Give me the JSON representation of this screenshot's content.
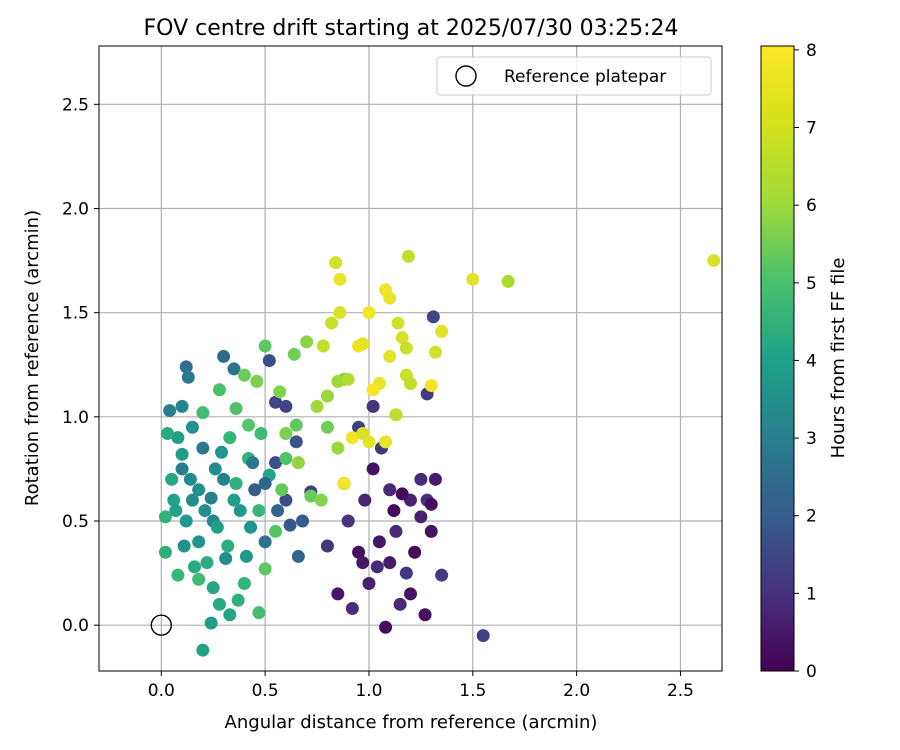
{
  "chart_data": {
    "type": "scatter",
    "title": "FOV centre drift starting at 2025/07/30 03:25:24",
    "xlabel": "Angular distance from reference (arcmin)",
    "ylabel": "Rotation from reference (arcmin)",
    "xlim": [
      -0.3,
      2.7
    ],
    "ylim": [
      -0.22,
      2.78
    ],
    "xticks": [
      "0.0",
      "0.5",
      "1.0",
      "1.5",
      "2.0",
      "2.5"
    ],
    "yticks": [
      "0.0",
      "0.5",
      "1.0",
      "1.5",
      "2.0",
      "2.5"
    ],
    "grid": true,
    "legend": {
      "position": "top-right",
      "entries": [
        "Reference platepar"
      ]
    },
    "reference_point": {
      "x": 0.0,
      "y": 0.0,
      "label": "Reference platepar"
    },
    "colorbar": {
      "label": "Hours from first FF file",
      "range": [
        0,
        8.05
      ],
      "ticks": [
        "0",
        "1",
        "2",
        "3",
        "4",
        "5",
        "6",
        "7",
        "8"
      ],
      "colormap": "viridis"
    },
    "series": [
      {
        "points": [
          {
            "x": 1.12,
            "y": 0.55,
            "h": 0.2
          },
          {
            "x": 1.05,
            "y": 0.4,
            "h": 0.5
          },
          {
            "x": 1.2,
            "y": 0.6,
            "h": 0.8
          },
          {
            "x": 0.95,
            "y": 0.35,
            "h": 0.3
          },
          {
            "x": 1.25,
            "y": 0.7,
            "h": 1.0
          },
          {
            "x": 1.1,
            "y": 0.3,
            "h": 0.6
          },
          {
            "x": 0.9,
            "y": 0.5,
            "h": 1.2
          },
          {
            "x": 1.3,
            "y": 0.45,
            "h": 0.4
          },
          {
            "x": 1.0,
            "y": 0.2,
            "h": 0.7
          },
          {
            "x": 1.15,
            "y": 0.1,
            "h": 0.9
          },
          {
            "x": 1.28,
            "y": 0.6,
            "h": 1.1
          },
          {
            "x": 0.85,
            "y": 0.15,
            "h": 0.5
          },
          {
            "x": 1.08,
            "y": -0.01,
            "h": 0.3
          },
          {
            "x": 1.18,
            "y": 0.25,
            "h": 1.3
          },
          {
            "x": 0.98,
            "y": 0.6,
            "h": 0.8
          },
          {
            "x": 1.22,
            "y": 0.35,
            "h": 0.2
          },
          {
            "x": 1.32,
            "y": 0.7,
            "h": 0.6
          },
          {
            "x": 0.92,
            "y": 0.08,
            "h": 1.0
          },
          {
            "x": 1.02,
            "y": 0.75,
            "h": 0.4
          },
          {
            "x": 1.13,
            "y": 0.45,
            "h": 0.9
          },
          {
            "x": 1.27,
            "y": 0.05,
            "h": 0.3
          },
          {
            "x": 1.35,
            "y": 0.24,
            "h": 1.4
          },
          {
            "x": 1.55,
            "y": -0.05,
            "h": 1.5
          },
          {
            "x": 0.8,
            "y": 0.38,
            "h": 1.2
          },
          {
            "x": 0.88,
            "y": 0.68,
            "h": 1.1
          },
          {
            "x": 1.06,
            "y": 0.85,
            "h": 1.3
          },
          {
            "x": 1.2,
            "y": 0.15,
            "h": 0.4
          },
          {
            "x": 1.25,
            "y": 0.52,
            "h": 0.7
          },
          {
            "x": 0.95,
            "y": 0.95,
            "h": 1.5
          },
          {
            "x": 1.31,
            "y": 1.48,
            "h": 1.6
          },
          {
            "x": 1.28,
            "y": 1.11,
            "h": 1.4
          },
          {
            "x": 1.02,
            "y": 1.05,
            "h": 1.2
          },
          {
            "x": 0.72,
            "y": 0.64,
            "h": 1.5
          },
          {
            "x": 1.16,
            "y": 0.63,
            "h": 0.2
          },
          {
            "x": 1.1,
            "y": 0.65,
            "h": 0.9
          },
          {
            "x": 0.97,
            "y": 0.3,
            "h": 0.5
          },
          {
            "x": 1.3,
            "y": 0.58,
            "h": 0.3
          },
          {
            "x": 1.04,
            "y": 0.28,
            "h": 1.0
          },
          {
            "x": 0.1,
            "y": 0.75,
            "h": 3.5
          },
          {
            "x": 0.15,
            "y": 0.6,
            "h": 4.0
          },
          {
            "x": 0.2,
            "y": 0.85,
            "h": 3.2
          },
          {
            "x": 0.08,
            "y": 0.9,
            "h": 4.5
          },
          {
            "x": 0.25,
            "y": 0.5,
            "h": 3.8
          },
          {
            "x": 0.12,
            "y": 1.24,
            "h": 3.0
          },
          {
            "x": 0.3,
            "y": 1.29,
            "h": 2.8
          },
          {
            "x": 0.35,
            "y": 1.23,
            "h": 3.1
          },
          {
            "x": 0.13,
            "y": 1.19,
            "h": 3.3
          },
          {
            "x": 0.05,
            "y": 0.7,
            "h": 4.8
          },
          {
            "x": 0.18,
            "y": 0.4,
            "h": 4.2
          },
          {
            "x": 0.22,
            "y": 0.3,
            "h": 5.0
          },
          {
            "x": 0.28,
            "y": 0.1,
            "h": 4.9
          },
          {
            "x": 0.2,
            "y": -0.12,
            "h": 4.6
          },
          {
            "x": 0.24,
            "y": 0.01,
            "h": 4.4
          },
          {
            "x": 0.33,
            "y": 0.05,
            "h": 4.7
          },
          {
            "x": 0.4,
            "y": 0.2,
            "h": 5.3
          },
          {
            "x": 0.47,
            "y": 0.06,
            "h": 5.6
          },
          {
            "x": 0.02,
            "y": 0.35,
            "h": 5.1
          },
          {
            "x": 0.08,
            "y": 0.24,
            "h": 5.4
          },
          {
            "x": 0.15,
            "y": 0.95,
            "h": 4.1
          },
          {
            "x": 0.3,
            "y": 0.7,
            "h": 3.6
          },
          {
            "x": 0.38,
            "y": 0.55,
            "h": 4.3
          },
          {
            "x": 0.45,
            "y": 0.65,
            "h": 2.4
          },
          {
            "x": 0.5,
            "y": 0.4,
            "h": 3.0
          },
          {
            "x": 0.62,
            "y": 0.48,
            "h": 2.2
          },
          {
            "x": 0.66,
            "y": 0.33,
            "h": 2.6
          },
          {
            "x": 0.55,
            "y": 0.78,
            "h": 2.0
          },
          {
            "x": 0.6,
            "y": 0.6,
            "h": 1.8
          },
          {
            "x": 0.65,
            "y": 0.88,
            "h": 2.1
          },
          {
            "x": 0.52,
            "y": 1.27,
            "h": 1.9
          },
          {
            "x": 0.55,
            "y": 1.07,
            "h": 1.7
          },
          {
            "x": 0.6,
            "y": 1.05,
            "h": 1.6
          },
          {
            "x": 0.68,
            "y": 0.5,
            "h": 2.3
          },
          {
            "x": 0.04,
            "y": 1.03,
            "h": 3.4
          },
          {
            "x": 0.1,
            "y": 1.05,
            "h": 3.7
          },
          {
            "x": 0.18,
            "y": 0.65,
            "h": 4.0
          },
          {
            "x": 0.26,
            "y": 0.75,
            "h": 3.9
          },
          {
            "x": 0.42,
            "y": 0.8,
            "h": 5.2
          },
          {
            "x": 0.48,
            "y": 0.92,
            "h": 5.5
          },
          {
            "x": 0.36,
            "y": 1.04,
            "h": 5.8
          },
          {
            "x": 0.4,
            "y": 1.2,
            "h": 6.2
          },
          {
            "x": 0.5,
            "y": 1.34,
            "h": 6.0
          },
          {
            "x": 0.57,
            "y": 1.12,
            "h": 6.5
          },
          {
            "x": 0.64,
            "y": 1.3,
            "h": 6.3
          },
          {
            "x": 0.7,
            "y": 1.36,
            "h": 6.6
          },
          {
            "x": 0.75,
            "y": 1.05,
            "h": 6.9
          },
          {
            "x": 0.8,
            "y": 1.1,
            "h": 6.8
          },
          {
            "x": 0.28,
            "y": 1.13,
            "h": 5.7
          },
          {
            "x": 0.55,
            "y": 0.45,
            "h": 5.9
          },
          {
            "x": 0.58,
            "y": 0.65,
            "h": 6.1
          },
          {
            "x": 0.5,
            "y": 0.27,
            "h": 6.0
          },
          {
            "x": 0.47,
            "y": 0.55,
            "h": 5.4
          },
          {
            "x": 0.32,
            "y": 0.38,
            "h": 5.0
          },
          {
            "x": 0.27,
            "y": 0.47,
            "h": 4.5
          },
          {
            "x": 0.12,
            "y": 0.5,
            "h": 4.3
          },
          {
            "x": 0.07,
            "y": 0.55,
            "h": 4.6
          },
          {
            "x": 0.16,
            "y": 0.28,
            "h": 4.9
          },
          {
            "x": 0.36,
            "y": 0.68,
            "h": 5.1
          },
          {
            "x": 0.43,
            "y": 0.47,
            "h": 4.2
          },
          {
            "x": 0.52,
            "y": 0.72,
            "h": 4.7
          },
          {
            "x": 0.6,
            "y": 0.92,
            "h": 6.4
          },
          {
            "x": 0.66,
            "y": 0.78,
            "h": 6.7
          },
          {
            "x": 0.72,
            "y": 0.62,
            "h": 6.2
          },
          {
            "x": 0.77,
            "y": 0.6,
            "h": 6.5
          },
          {
            "x": 0.85,
            "y": 0.85,
            "h": 6.8
          },
          {
            "x": 0.88,
            "y": 1.18,
            "h": 6.4
          },
          {
            "x": 0.78,
            "y": 1.34,
            "h": 7.3
          },
          {
            "x": 0.82,
            "y": 1.45,
            "h": 7.4
          },
          {
            "x": 0.86,
            "y": 1.5,
            "h": 7.6
          },
          {
            "x": 0.84,
            "y": 1.74,
            "h": 7.5
          },
          {
            "x": 0.86,
            "y": 1.66,
            "h": 7.8
          },
          {
            "x": 0.95,
            "y": 1.34,
            "h": 7.9
          },
          {
            "x": 0.97,
            "y": 1.35,
            "h": 7.7
          },
          {
            "x": 1.0,
            "y": 1.5,
            "h": 7.9
          },
          {
            "x": 1.08,
            "y": 1.61,
            "h": 7.9
          },
          {
            "x": 1.1,
            "y": 1.57,
            "h": 7.8
          },
          {
            "x": 1.14,
            "y": 1.45,
            "h": 7.5
          },
          {
            "x": 1.16,
            "y": 1.38,
            "h": 7.6
          },
          {
            "x": 1.18,
            "y": 1.33,
            "h": 7.4
          },
          {
            "x": 1.19,
            "y": 1.77,
            "h": 7.3
          },
          {
            "x": 1.1,
            "y": 1.29,
            "h": 7.7
          },
          {
            "x": 1.05,
            "y": 1.16,
            "h": 7.8
          },
          {
            "x": 1.02,
            "y": 1.13,
            "h": 8.0
          },
          {
            "x": 0.92,
            "y": 0.9,
            "h": 7.9
          },
          {
            "x": 0.97,
            "y": 0.92,
            "h": 7.6
          },
          {
            "x": 1.0,
            "y": 0.88,
            "h": 7.7
          },
          {
            "x": 1.08,
            "y": 0.88,
            "h": 7.8
          },
          {
            "x": 1.13,
            "y": 1.01,
            "h": 7.2
          },
          {
            "x": 1.18,
            "y": 1.2,
            "h": 7.4
          },
          {
            "x": 1.2,
            "y": 1.16,
            "h": 7.3
          },
          {
            "x": 1.3,
            "y": 1.15,
            "h": 7.9
          },
          {
            "x": 1.32,
            "y": 1.31,
            "h": 7.5
          },
          {
            "x": 1.35,
            "y": 1.41,
            "h": 7.7
          },
          {
            "x": 1.5,
            "y": 1.66,
            "h": 7.7
          },
          {
            "x": 1.67,
            "y": 1.65,
            "h": 7.0
          },
          {
            "x": 2.66,
            "y": 1.75,
            "h": 7.6
          },
          {
            "x": 0.88,
            "y": 0.68,
            "h": 7.9
          },
          {
            "x": 0.85,
            "y": 1.17,
            "h": 6.9
          },
          {
            "x": 0.9,
            "y": 1.18,
            "h": 7.1
          },
          {
            "x": 0.8,
            "y": 0.95,
            "h": 6.3
          },
          {
            "x": 0.65,
            "y": 0.96,
            "h": 6.0
          },
          {
            "x": 0.6,
            "y": 0.8,
            "h": 5.8
          },
          {
            "x": 0.46,
            "y": 1.17,
            "h": 6.4
          },
          {
            "x": 0.42,
            "y": 0.96,
            "h": 5.9
          },
          {
            "x": 0.33,
            "y": 0.9,
            "h": 5.3
          },
          {
            "x": 0.2,
            "y": 1.02,
            "h": 5.6
          },
          {
            "x": 0.1,
            "y": 0.82,
            "h": 4.4
          },
          {
            "x": 0.03,
            "y": 0.92,
            "h": 4.9
          },
          {
            "x": 0.02,
            "y": 0.52,
            "h": 5.2
          },
          {
            "x": 0.06,
            "y": 0.6,
            "h": 4.6
          },
          {
            "x": 0.11,
            "y": 0.38,
            "h": 4.1
          },
          {
            "x": 0.18,
            "y": 0.22,
            "h": 5.5
          },
          {
            "x": 0.25,
            "y": 0.18,
            "h": 4.8
          },
          {
            "x": 0.37,
            "y": 0.12,
            "h": 5.1
          },
          {
            "x": 0.31,
            "y": 0.32,
            "h": 3.9
          },
          {
            "x": 0.24,
            "y": 0.61,
            "h": 3.6
          },
          {
            "x": 0.14,
            "y": 0.7,
            "h": 3.8
          },
          {
            "x": 0.21,
            "y": 0.55,
            "h": 4.0
          },
          {
            "x": 0.29,
            "y": 0.83,
            "h": 4.2
          },
          {
            "x": 0.35,
            "y": 0.6,
            "h": 4.5
          },
          {
            "x": 0.41,
            "y": 0.33,
            "h": 4.3
          },
          {
            "x": 0.44,
            "y": 0.78,
            "h": 3.2
          },
          {
            "x": 0.5,
            "y": 0.68,
            "h": 2.7
          },
          {
            "x": 0.56,
            "y": 0.55,
            "h": 2.5
          }
        ]
      }
    ]
  }
}
